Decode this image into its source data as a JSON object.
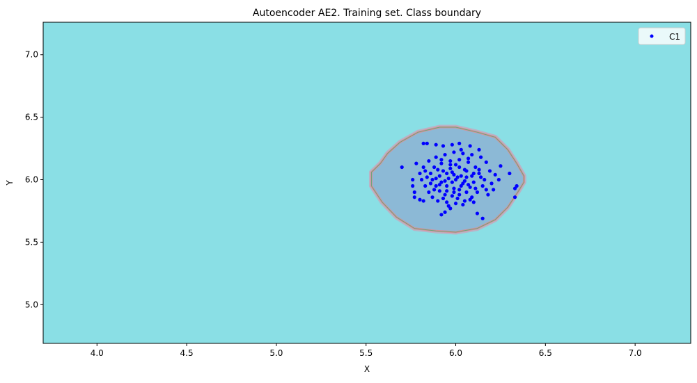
{
  "chart_data": {
    "type": "scatter",
    "title": "Autoencoder AE2. Training set. Class boundary",
    "xlabel": "X",
    "ylabel": "Y",
    "xlim": [
      3.7,
      7.31
    ],
    "ylim": [
      4.69,
      7.26
    ],
    "xticks": [
      4.0,
      4.5,
      5.0,
      5.5,
      6.0,
      6.5,
      7.0
    ],
    "xtick_labels": [
      "4.0",
      "4.5",
      "5.0",
      "5.5",
      "6.0",
      "6.5",
      "7.0"
    ],
    "yticks": [
      5.0,
      5.5,
      6.0,
      6.5,
      7.0
    ],
    "ytick_labels": [
      "5.0",
      "5.5",
      "6.0",
      "6.5",
      "7.0"
    ],
    "grid": false,
    "legend": {
      "placement": "top-right",
      "entries": [
        "C1"
      ]
    },
    "colors": {
      "background_region": "#8adfe5",
      "class_region": "#8cb9d6",
      "boundary_outer": "#d9909c",
      "boundary_inner": "#6aa67a",
      "points": "#0000ff"
    },
    "boundary": [
      [
        5.53,
        6.06
      ],
      [
        5.53,
        5.95
      ],
      [
        5.59,
        5.82
      ],
      [
        5.67,
        5.7
      ],
      [
        5.77,
        5.61
      ],
      [
        5.89,
        5.59
      ],
      [
        6.0,
        5.58
      ],
      [
        6.12,
        5.61
      ],
      [
        6.22,
        5.68
      ],
      [
        6.29,
        5.78
      ],
      [
        6.35,
        5.91
      ],
      [
        6.38,
        5.98
      ],
      [
        6.38,
        6.03
      ],
      [
        6.34,
        6.13
      ],
      [
        6.29,
        6.24
      ],
      [
        6.22,
        6.34
      ],
      [
        6.12,
        6.38
      ],
      [
        6.0,
        6.42
      ],
      [
        5.91,
        6.42
      ],
      [
        5.79,
        6.38
      ],
      [
        5.69,
        6.3
      ],
      [
        5.62,
        6.21
      ],
      [
        5.58,
        6.13
      ]
    ],
    "series": [
      {
        "name": "C1",
        "points": [
          [
            5.7,
            6.1
          ],
          [
            6.33,
            5.86
          ],
          [
            6.33,
            5.93
          ],
          [
            6.34,
            5.95
          ],
          [
            6.15,
            5.69
          ],
          [
            6.12,
            5.73
          ],
          [
            5.84,
            6.29
          ],
          [
            5.82,
            6.29
          ],
          [
            6.3,
            6.05
          ],
          [
            6.25,
            6.11
          ],
          [
            5.89,
            6.28
          ],
          [
            5.93,
            6.27
          ],
          [
            5.98,
            6.28
          ],
          [
            6.02,
            6.29
          ],
          [
            6.08,
            6.27
          ],
          [
            6.13,
            6.24
          ],
          [
            5.78,
            6.13
          ],
          [
            5.76,
            6.0
          ],
          [
            5.76,
            5.95
          ],
          [
            5.77,
            5.9
          ],
          [
            5.77,
            5.86
          ],
          [
            5.8,
            5.84
          ],
          [
            5.82,
            5.83
          ],
          [
            5.92,
            5.72
          ],
          [
            5.94,
            5.74
          ],
          [
            5.97,
            5.77
          ],
          [
            6.04,
            5.8
          ],
          [
            6.1,
            5.82
          ],
          [
            6.18,
            5.88
          ],
          [
            6.21,
            5.92
          ],
          [
            6.24,
            6.0
          ],
          [
            6.22,
            6.04
          ],
          [
            6.19,
            6.07
          ],
          [
            6.17,
            6.14
          ],
          [
            6.14,
            6.18
          ],
          [
            6.09,
            6.2
          ],
          [
            6.04,
            6.21
          ],
          [
            5.99,
            6.22
          ],
          [
            5.94,
            6.2
          ],
          [
            5.89,
            6.18
          ],
          [
            5.85,
            6.15
          ],
          [
            5.82,
            6.1
          ],
          [
            5.8,
            6.05
          ],
          [
            5.81,
            6.0
          ],
          [
            5.83,
            5.95
          ],
          [
            5.85,
            5.9
          ],
          [
            5.87,
            5.86
          ],
          [
            5.9,
            5.83
          ],
          [
            5.95,
            5.82
          ],
          [
            6.0,
            5.81
          ],
          [
            6.05,
            5.83
          ],
          [
            6.09,
            5.86
          ],
          [
            6.12,
            5.9
          ],
          [
            6.15,
            5.95
          ],
          [
            6.16,
            6.0
          ],
          [
            6.13,
            6.05
          ],
          [
            6.11,
            6.1
          ],
          [
            6.07,
            6.14
          ],
          [
            6.02,
            6.16
          ],
          [
            5.97,
            6.15
          ],
          [
            5.92,
            6.13
          ],
          [
            5.88,
            6.1
          ],
          [
            5.86,
            6.05
          ],
          [
            5.87,
            6.0
          ],
          [
            5.89,
            5.95
          ],
          [
            5.91,
            5.91
          ],
          [
            5.94,
            5.88
          ],
          [
            5.98,
            5.87
          ],
          [
            6.02,
            5.88
          ],
          [
            6.06,
            5.9
          ],
          [
            6.08,
            5.94
          ],
          [
            6.1,
            5.98
          ],
          [
            6.09,
            6.03
          ],
          [
            6.06,
            6.07
          ],
          [
            6.02,
            6.1
          ],
          [
            5.97,
            6.09
          ],
          [
            5.93,
            6.07
          ],
          [
            5.91,
            6.03
          ],
          [
            5.92,
            5.98
          ],
          [
            5.95,
            5.95
          ],
          [
            5.99,
            5.93
          ],
          [
            6.03,
            5.95
          ],
          [
            6.05,
            5.99
          ],
          [
            6.03,
            6.03
          ],
          [
            5.99,
            6.04
          ],
          [
            5.96,
            6.01
          ],
          [
            6.0,
            6.0
          ],
          [
            5.98,
            5.98
          ],
          [
            6.01,
            6.02
          ],
          [
            5.95,
            6.05
          ],
          [
            6.04,
            5.97
          ],
          [
            5.94,
            5.99
          ],
          [
            6.06,
            6.02
          ],
          [
            5.97,
            6.12
          ],
          [
            6.01,
            5.85
          ],
          [
            5.9,
            6.08
          ],
          [
            6.11,
            5.93
          ],
          [
            5.88,
            5.92
          ],
          [
            6.13,
            6.08
          ],
          [
            5.93,
            5.85
          ],
          [
            6.07,
            6.17
          ],
          [
            5.84,
            6.02
          ],
          [
            6.2,
            5.97
          ],
          [
            5.96,
            5.79
          ],
          [
            6.03,
            6.24
          ],
          [
            5.86,
            5.97
          ],
          [
            6.14,
            6.02
          ],
          [
            5.99,
            5.9
          ],
          [
            6.0,
            6.12
          ],
          [
            5.92,
            6.16
          ],
          [
            6.08,
            5.84
          ],
          [
            5.83,
            6.07
          ],
          [
            6.17,
            5.92
          ],
          [
            5.95,
            5.91
          ],
          [
            6.05,
            6.08
          ],
          [
            5.89,
            6.01
          ],
          [
            6.1,
            6.05
          ],
          [
            5.98,
            6.06
          ],
          [
            6.02,
            5.92
          ],
          [
            5.91,
            5.96
          ],
          [
            6.07,
            5.96
          ]
        ]
      }
    ]
  }
}
